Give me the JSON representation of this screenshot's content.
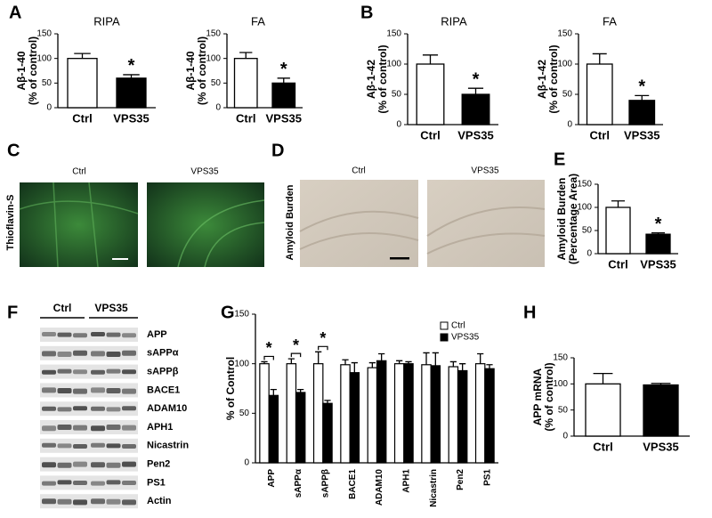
{
  "chart_data": [
    {
      "type": "bar",
      "title": "RIPA",
      "ylabel": [
        "Aβ-1-40",
        "(% of control)"
      ],
      "categories": [
        "Ctrl",
        "VPS35"
      ],
      "values": [
        100,
        60
      ],
      "errors": [
        10,
        7
      ],
      "colors": [
        "#ffffff",
        "#000000"
      ],
      "annotation": "*",
      "ylim": [
        0,
        150
      ],
      "yticks": [
        0,
        50,
        100,
        150
      ]
    },
    {
      "type": "bar",
      "title": "FA",
      "ylabel": [
        "Aβ-1-40",
        "(% of control)"
      ],
      "categories": [
        "Ctrl",
        "VPS35"
      ],
      "values": [
        100,
        50
      ],
      "errors": [
        12,
        10
      ],
      "colors": [
        "#ffffff",
        "#000000"
      ],
      "annotation": "*",
      "ylim": [
        0,
        150
      ],
      "yticks": [
        0,
        50,
        100,
        150
      ]
    },
    {
      "type": "bar",
      "title": "RIPA",
      "ylabel": [
        "Aβ-1-42",
        "(% of control)"
      ],
      "categories": [
        "Ctrl",
        "VPS35"
      ],
      "values": [
        100,
        50
      ],
      "errors": [
        15,
        10
      ],
      "colors": [
        "#ffffff",
        "#000000"
      ],
      "annotation": "*",
      "ylim": [
        0,
        150
      ],
      "yticks": [
        0,
        50,
        100,
        150
      ]
    },
    {
      "type": "bar",
      "title": "FA",
      "ylabel": [
        "Aβ-1-42",
        "(% of control)"
      ],
      "categories": [
        "Ctrl",
        "VPS35"
      ],
      "values": [
        100,
        40
      ],
      "errors": [
        17,
        8
      ],
      "colors": [
        "#ffffff",
        "#000000"
      ],
      "annotation": "*",
      "ylim": [
        0,
        150
      ],
      "yticks": [
        0,
        50,
        100,
        150
      ]
    },
    {
      "type": "bar",
      "ylabel": [
        "Amyloid Burden",
        "(Percentage Area)"
      ],
      "categories": [
        "Ctrl",
        "VPS35"
      ],
      "values": [
        100,
        42
      ],
      "errors": [
        14,
        3
      ],
      "colors": [
        "#ffffff",
        "#000000"
      ],
      "annotation": "*",
      "ylim": [
        0,
        150
      ],
      "yticks": [
        0,
        50,
        100,
        150
      ]
    },
    {
      "type": "grouped-bar",
      "ylabel": [
        "% of Control"
      ],
      "categories": [
        "APP",
        "sAPPα",
        "sAPPβ",
        "BACE1",
        "ADAM10",
        "APH1",
        "Nicastrin",
        "Pen2",
        "PS1"
      ],
      "series": [
        {
          "name": "Ctrl",
          "color": "#ffffff",
          "values": [
            100,
            100,
            100,
            99,
            96,
            100,
            99,
            97,
            100
          ],
          "errors": [
            2,
            5,
            12,
            5,
            5,
            3,
            12,
            5,
            10
          ]
        },
        {
          "name": "VPS35",
          "color": "#000000",
          "values": [
            68,
            71,
            60,
            91,
            103,
            100,
            98,
            93,
            95
          ],
          "errors": [
            6,
            3,
            3,
            10,
            7,
            2,
            13,
            7,
            4
          ]
        }
      ],
      "annotations": [
        "*",
        "*",
        "*"
      ],
      "ylim": [
        0,
        150
      ],
      "yticks": [
        0,
        50,
        100,
        150
      ]
    },
    {
      "type": "bar",
      "ylabel": [
        "APP mRNA",
        "(% of control)"
      ],
      "categories": [
        "Ctrl",
        "VPS35"
      ],
      "values": [
        100,
        98
      ],
      "errors": [
        20,
        3
      ],
      "colors": [
        "#ffffff",
        "#000000"
      ],
      "ylim": [
        0,
        150
      ],
      "yticks": [
        0,
        50,
        100,
        150
      ]
    }
  ],
  "panels": {
    "letters": [
      "A",
      "B",
      "C",
      "D",
      "E",
      "F",
      "G",
      "H"
    ],
    "thioflavin": {
      "ylabel": "Thioflavin-S",
      "labels": [
        "Ctrl",
        "VPS35"
      ]
    },
    "amyloid": {
      "ylabel": "Amyloid Burden",
      "labels": [
        "Ctrl",
        "VPS35"
      ]
    },
    "blot": {
      "groups": [
        "Ctrl",
        "VPS35"
      ],
      "rows": [
        "APP",
        "sAPPα",
        "sAPPβ",
        "BACE1",
        "ADAM10",
        "APH1",
        "Nicastrin",
        "Pen2",
        "PS1",
        "Actin"
      ]
    }
  }
}
